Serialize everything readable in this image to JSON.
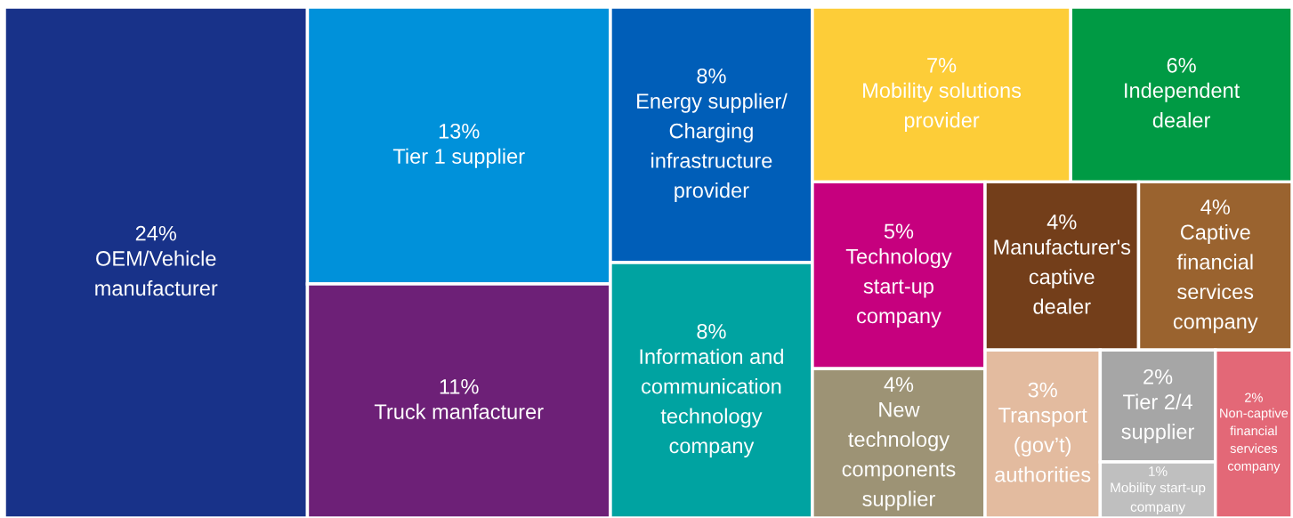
{
  "chart_data": {
    "type": "other",
    "categories": [
      "OEM/Vehicle\nmanufacturer",
      "Tier 1 supplier",
      "Truck manfacturer",
      "Energy supplier/\nCharging\ninfrastructure\nprovider",
      "Information and\ncommunication\ntechnology\ncompany",
      "Mobility solutions\nprovider",
      "Independent\ndealer",
      "Technology\nstart-up\ncompany",
      "New\ntechnology\ncomponents\nsupplier",
      "Manufacturer's\ncaptive\ndealer",
      "Captive\nfinancial\nservices\ncompany",
      "Transport\n(gov’t)\nauthorities",
      "Tier 2/4\nsupplier",
      "Mobility start-up company",
      "Non-captive financial services company"
    ],
    "values": [
      24,
      13,
      11,
      8,
      8,
      7,
      6,
      5,
      4,
      4,
      4,
      3,
      2,
      1,
      2
    ],
    "value_labels": [
      "24%",
      "13%",
      "11%",
      "8%",
      "8%",
      "7%",
      "6%",
      "5%",
      "4%",
      "4%",
      "4%",
      "3%",
      "2%",
      "1%",
      "2%"
    ],
    "colors": [
      "#183289",
      "#0091da",
      "#6d2077",
      "#005eb8",
      "#00a3a1",
      "#fdcd38",
      "#009a44",
      "#c6007e",
      "#9d9375",
      "#733e1a",
      "#9a632f",
      "#e3bb9f",
      "#a6a6a6",
      "#bfbfbf",
      "#e36877"
    ]
  }
}
